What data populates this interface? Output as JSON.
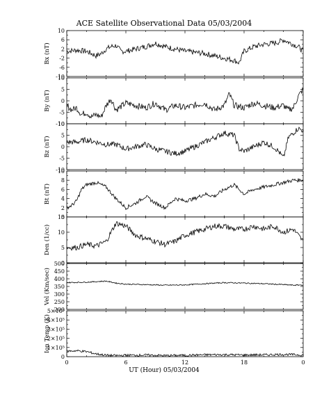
{
  "chart_data": {
    "type": "line",
    "title": "ACE Satellite Observational Data   05/03/2004",
    "xlabel": "UT (Hour)   05/03/2004",
    "x_ticks": [
      "0",
      "6",
      "12",
      "18",
      "0"
    ],
    "x_range": [
      0,
      24
    ],
    "line_color": "#000000",
    "panels": [
      {
        "id": "bx",
        "ylabel": "Bx (nT)",
        "ylim": [
          -10,
          10
        ],
        "yticks": [
          -10,
          -6,
          -2,
          2,
          6,
          10
        ],
        "ytick_labels": [
          "-10",
          "-6",
          "-2",
          "2",
          "6",
          "10"
        ],
        "series": {
          "x": [
            0,
            1,
            2,
            2.5,
            3,
            3.5,
            4,
            4.5,
            5,
            5.5,
            6,
            7,
            8,
            9,
            10,
            11,
            12,
            13,
            14,
            15,
            16,
            17,
            17.5,
            18,
            19,
            20,
            21,
            21.5,
            22,
            22.5,
            23,
            23.5,
            24
          ],
          "y": [
            1,
            1.5,
            1,
            0,
            -1,
            0,
            2,
            3,
            3.5,
            1,
            1,
            2,
            3,
            4.5,
            3,
            2,
            1,
            0.5,
            0,
            -1,
            -2,
            -3,
            -4,
            1,
            3,
            4,
            4.5,
            5,
            6,
            5,
            4,
            3,
            1
          ]
        }
      },
      {
        "id": "by",
        "ylabel": "By (nT)",
        "ylim": [
          -10,
          10
        ],
        "yticks": [
          -10,
          -5,
          0,
          5,
          10
        ],
        "ytick_labels": [
          "-10",
          "-5",
          "0",
          "5",
          "10"
        ],
        "series": {
          "x": [
            0,
            0.5,
            1,
            1.5,
            2,
            2.5,
            3,
            3.5,
            4,
            4.5,
            5,
            6,
            7,
            8,
            9,
            10,
            11,
            12,
            13,
            14,
            15,
            16,
            16.5,
            17,
            18,
            19,
            20,
            21,
            22,
            22.5,
            23,
            23.5,
            24
          ],
          "y": [
            -2,
            -4,
            -3,
            -6,
            -5,
            -7,
            -6,
            -7,
            -2,
            1,
            -4,
            -1,
            -2,
            -3,
            -1,
            -4,
            -2,
            -3,
            -2,
            -1,
            -4,
            -2,
            3,
            -2,
            -3,
            -1,
            -2,
            -3,
            -2,
            -4,
            -3,
            2,
            5
          ]
        }
      },
      {
        "id": "bz",
        "ylabel": "Bz (nT)",
        "ylim": [
          -10,
          10
        ],
        "yticks": [
          -10,
          -5,
          0,
          5,
          10
        ],
        "ytick_labels": [
          "-10",
          "-5",
          "0",
          "5",
          "10"
        ],
        "series": {
          "x": [
            0,
            1,
            2,
            3,
            4,
            5,
            6,
            7,
            8,
            9,
            10,
            11,
            12,
            13,
            14,
            15,
            16,
            17,
            17.5,
            18,
            19,
            20,
            21,
            21.5,
            22,
            22.5,
            23,
            23.5,
            24
          ],
          "y": [
            2,
            2,
            3,
            2,
            1,
            1,
            -1,
            0,
            1,
            -1,
            -2,
            -3,
            -2,
            0,
            2,
            4,
            6,
            5,
            -1,
            -2,
            0,
            2,
            0,
            -2,
            -5,
            4,
            6,
            8,
            7
          ]
        }
      },
      {
        "id": "bt",
        "ylabel": "Bt (nT)",
        "ylim": [
          0,
          10
        ],
        "yticks": [
          0,
          2,
          4,
          6,
          8,
          10
        ],
        "ytick_labels": [
          "0",
          "2",
          "4",
          "6",
          "8",
          "10"
        ],
        "series": {
          "x": [
            0,
            0.5,
            1,
            1.5,
            2,
            3,
            4,
            5,
            6,
            7,
            8,
            9,
            10,
            11,
            12,
            13,
            14,
            15,
            16,
            17,
            18,
            19,
            20,
            21,
            22,
            23,
            24
          ],
          "y": [
            2,
            2.5,
            3.5,
            6,
            7,
            7.5,
            6.5,
            4,
            2,
            3,
            4.5,
            3,
            2,
            4,
            3.5,
            4,
            5,
            4.5,
            6,
            7,
            5,
            6,
            6.5,
            7,
            7.5,
            8,
            8
          ]
        }
      },
      {
        "id": "den",
        "ylabel": "Den (1/cc)",
        "ylim": [
          0,
          15
        ],
        "yticks": [
          0,
          5,
          10,
          15
        ],
        "ytick_labels": [
          "0",
          "5",
          "10",
          "15"
        ],
        "series": {
          "x": [
            0,
            1,
            2,
            3,
            4,
            4.5,
            5,
            6,
            7,
            8,
            9,
            10,
            11,
            12,
            13,
            14,
            15,
            16,
            17,
            18,
            19,
            20,
            21,
            22,
            23,
            24
          ],
          "y": [
            5,
            5,
            6,
            5.5,
            7,
            10,
            13,
            12,
            9,
            8,
            7,
            6,
            7,
            9,
            10,
            11,
            12,
            12,
            11,
            11,
            12,
            11,
            12,
            10,
            11,
            7
          ]
        }
      },
      {
        "id": "vel",
        "ylabel": "Vel (Km/sec)",
        "ylim": [
          200,
          500
        ],
        "yticks": [
          200,
          250,
          300,
          350,
          400,
          450,
          500
        ],
        "ytick_labels": [
          "200",
          "250",
          "300",
          "350",
          "400",
          "450",
          "500"
        ],
        "series": {
          "x": [
            0,
            2,
            4,
            5,
            6,
            8,
            10,
            12,
            14,
            16,
            18,
            20,
            22,
            23,
            24
          ],
          "y": [
            375,
            378,
            385,
            372,
            365,
            362,
            358,
            360,
            368,
            375,
            372,
            368,
            362,
            358,
            360
          ]
        }
      },
      {
        "id": "temp",
        "ylabel": "Ion Temp (K)",
        "ylim": [
          0,
          500000
        ],
        "yticks": [
          0,
          100000,
          200000,
          300000,
          400000,
          500000
        ],
        "ytick_labels": [
          "0",
          "1×10⁵",
          "2×10⁵",
          "3×10⁵",
          "4×10⁵",
          "5×10⁵"
        ],
        "series": {
          "x": [
            0,
            1,
            2,
            3,
            4,
            5,
            6,
            8,
            10,
            12,
            14,
            16,
            18,
            20,
            22,
            23,
            24
          ],
          "y": [
            60000,
            65000,
            55000,
            30000,
            15000,
            12000,
            15000,
            18000,
            12000,
            15000,
            20000,
            22000,
            18000,
            20000,
            25000,
            22000,
            18000
          ]
        }
      }
    ]
  }
}
